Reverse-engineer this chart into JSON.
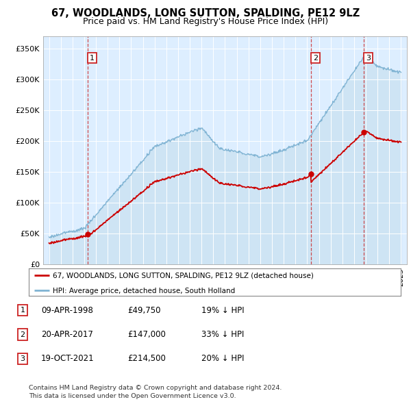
{
  "title": "67, WOODLANDS, LONG SUTTON, SPALDING, PE12 9LZ",
  "subtitle": "Price paid vs. HM Land Registry's House Price Index (HPI)",
  "hpi_color": "#7fb3d3",
  "hpi_fill": "#c8e0f0",
  "price_color": "#cc0000",
  "bg_color": "#ddeeff",
  "sale_dates_num": [
    1998.27,
    2017.3,
    2021.8
  ],
  "sale_prices": [
    49750,
    147000,
    214500
  ],
  "sale_labels": [
    "1",
    "2",
    "3"
  ],
  "legend_entries": [
    "67, WOODLANDS, LONG SUTTON, SPALDING, PE12 9LZ (detached house)",
    "HPI: Average price, detached house, South Holland"
  ],
  "table_rows": [
    {
      "label": "1",
      "date": "09-APR-1998",
      "price": "£49,750",
      "note": "19% ↓ HPI"
    },
    {
      "label": "2",
      "date": "20-APR-2017",
      "price": "£147,000",
      "note": "33% ↓ HPI"
    },
    {
      "label": "3",
      "date": "19-OCT-2021",
      "price": "£214,500",
      "note": "20% ↓ HPI"
    }
  ],
  "footnote1": "Contains HM Land Registry data © Crown copyright and database right 2024.",
  "footnote2": "This data is licensed under the Open Government Licence v3.0.",
  "ylim": [
    0,
    370000
  ],
  "xlim": [
    1994.5,
    2025.5
  ]
}
